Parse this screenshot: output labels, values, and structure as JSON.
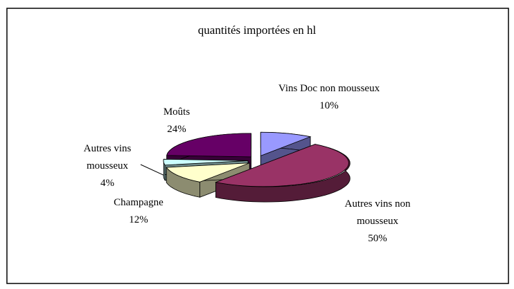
{
  "chart_data": {
    "type": "pie",
    "title": "quantités importées en hl",
    "categories": [
      "Vins Doc non mousseux",
      "Autres vins non mousseux",
      "Champagne",
      "Autres vins mousseux",
      "Moûts"
    ],
    "values": [
      10,
      50,
      12,
      4,
      24
    ],
    "value_labels": [
      "10%",
      "50%",
      "12%",
      "4%",
      "24%"
    ],
    "colors": [
      "#9999ff",
      "#993366",
      "#ffffcc",
      "#ccffff",
      "#660066"
    ]
  }
}
